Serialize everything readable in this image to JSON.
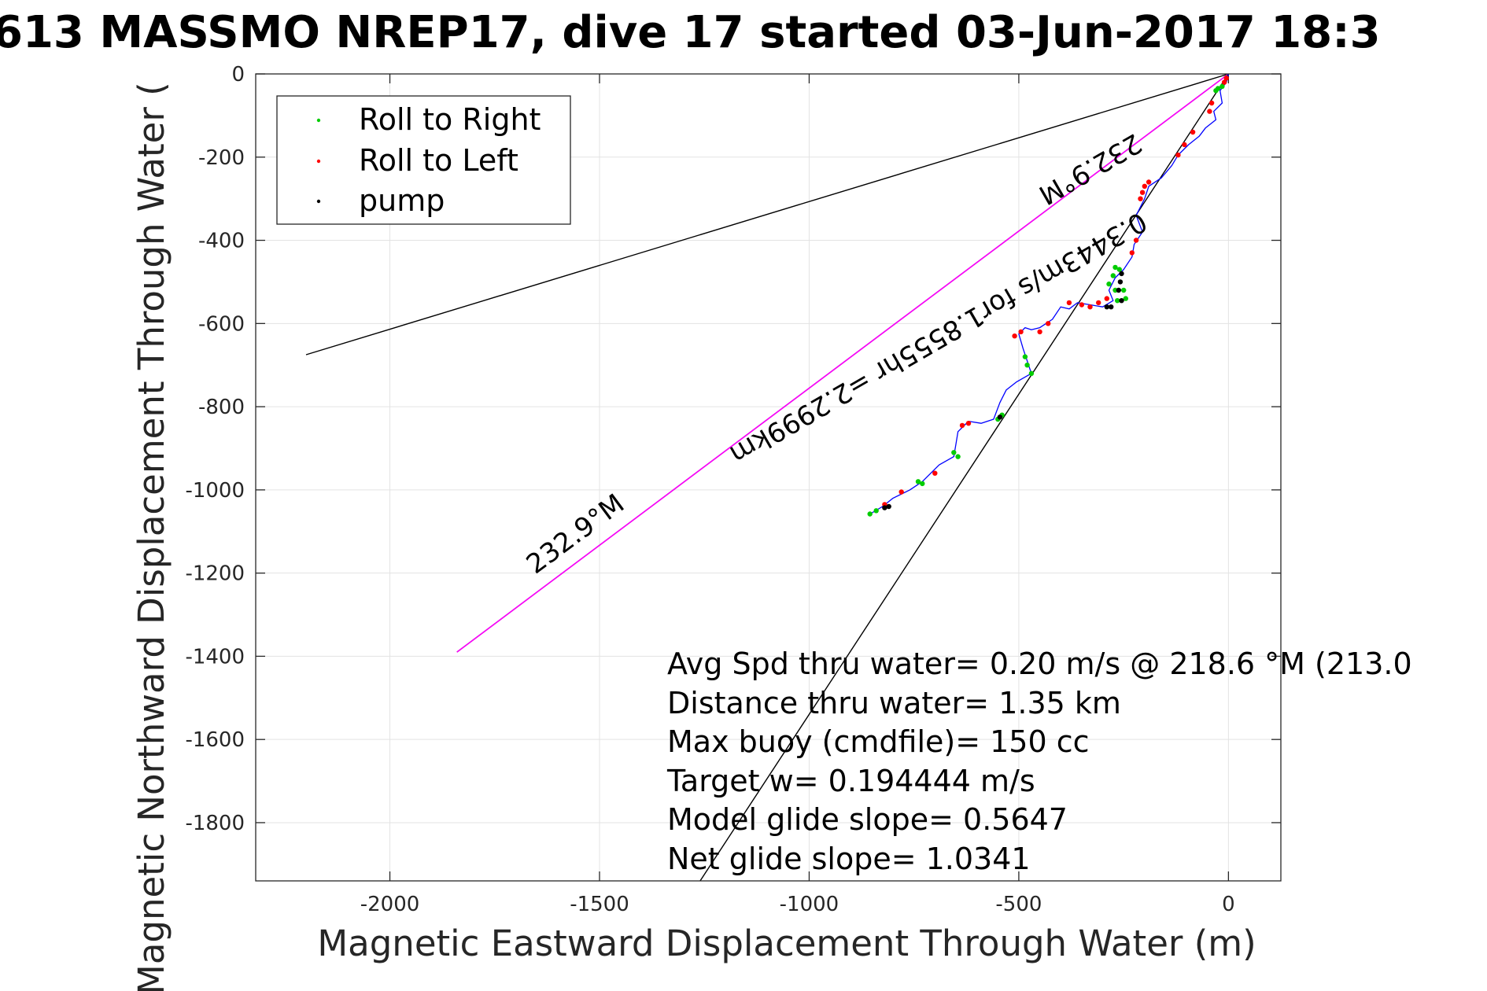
{
  "chart_data": {
    "type": "scatter",
    "title": "613 MASSMO NREP17, dive 17 started 03-Jun-2017 18:3",
    "xlabel": "Magnetic Eastward Displacement Through Water (m)",
    "ylabel": "Magnetic Northward Displacement Through Water (",
    "xlim": [
      -2320,
      125
    ],
    "ylim": [
      -1940,
      0
    ],
    "grid": true,
    "legend_position": "top-left",
    "xticks": [
      {
        "value": -2000,
        "label": "-2000"
      },
      {
        "value": -1500,
        "label": "-1500"
      },
      {
        "value": -1000,
        "label": "-1000"
      },
      {
        "value": -500,
        "label": "-500"
      },
      {
        "value": 0,
        "label": "0"
      }
    ],
    "yticks": [
      {
        "value": 0,
        "label": "0"
      },
      {
        "value": -200,
        "label": "-200"
      },
      {
        "value": -400,
        "label": "-400"
      },
      {
        "value": -600,
        "label": "-600"
      },
      {
        "value": -800,
        "label": "-800"
      },
      {
        "value": -1000,
        "label": "-1000"
      },
      {
        "value": -1200,
        "label": "-1200"
      },
      {
        "value": -1400,
        "label": "-1400"
      },
      {
        "value": -1600,
        "label": "-1600"
      },
      {
        "value": -1800,
        "label": "-1800"
      }
    ],
    "legend": [
      {
        "name": "Roll to Right",
        "color": "#00cc00"
      },
      {
        "name": "Roll to Left",
        "color": "#ff0000"
      },
      {
        "name": "pump",
        "color": "#000000"
      }
    ],
    "track": {
      "color": "#0000ff",
      "points": [
        [
          0,
          0
        ],
        [
          -5,
          -20
        ],
        [
          -20,
          -40
        ],
        [
          -15,
          -70
        ],
        [
          -35,
          -90
        ],
        [
          -30,
          -110
        ],
        [
          -55,
          -130
        ],
        [
          -70,
          -150
        ],
        [
          -95,
          -170
        ],
        [
          -120,
          -195
        ],
        [
          -135,
          -220
        ],
        [
          -160,
          -250
        ],
        [
          -190,
          -270
        ],
        [
          -200,
          -300
        ],
        [
          -220,
          -340
        ],
        [
          -205,
          -380
        ],
        [
          -225,
          -410
        ],
        [
          -230,
          -440
        ],
        [
          -250,
          -470
        ],
        [
          -270,
          -490
        ],
        [
          -285,
          -520
        ],
        [
          -275,
          -545
        ],
        [
          -300,
          -560
        ],
        [
          -330,
          -555
        ],
        [
          -360,
          -550
        ],
        [
          -380,
          -565
        ],
        [
          -400,
          -560
        ],
        [
          -420,
          -590
        ],
        [
          -450,
          -610
        ],
        [
          -470,
          -615
        ],
        [
          -485,
          -610
        ],
        [
          -500,
          -625
        ],
        [
          -490,
          -660
        ],
        [
          -480,
          -690
        ],
        [
          -470,
          -720
        ],
        [
          -505,
          -740
        ],
        [
          -530,
          -760
        ],
        [
          -545,
          -790
        ],
        [
          -560,
          -830
        ],
        [
          -590,
          -840
        ],
        [
          -620,
          -835
        ],
        [
          -645,
          -860
        ],
        [
          -650,
          -890
        ],
        [
          -655,
          -920
        ],
        [
          -690,
          -940
        ],
        [
          -710,
          -960
        ],
        [
          -730,
          -980
        ],
        [
          -760,
          -1000
        ],
        [
          -800,
          -1020
        ],
        [
          -825,
          -1040
        ],
        [
          -850,
          -1055
        ],
        [
          -860,
          -1060
        ]
      ]
    },
    "roll_right": {
      "color": "#00cc00",
      "points": [
        [
          -15,
          -30
        ],
        [
          -25,
          -35
        ],
        [
          -30,
          -40
        ],
        [
          -260,
          -470
        ],
        [
          -270,
          -465
        ],
        [
          -275,
          -485
        ],
        [
          -285,
          -505
        ],
        [
          -270,
          -520
        ],
        [
          -250,
          -520
        ],
        [
          -245,
          -540
        ],
        [
          -265,
          -545
        ],
        [
          -485,
          -680
        ],
        [
          -480,
          -700
        ],
        [
          -470,
          -720
        ],
        [
          -540,
          -820
        ],
        [
          -550,
          -830
        ],
        [
          -645,
          -920
        ],
        [
          -655,
          -910
        ],
        [
          -730,
          -985
        ],
        [
          -740,
          -980
        ],
        [
          -840,
          -1050
        ],
        [
          -855,
          -1058
        ]
      ]
    },
    "roll_left": {
      "color": "#ff0000",
      "points": [
        [
          -5,
          -10
        ],
        [
          -10,
          -20
        ],
        [
          -40,
          -70
        ],
        [
          -45,
          -90
        ],
        [
          -85,
          -140
        ],
        [
          -105,
          -170
        ],
        [
          -120,
          -195
        ],
        [
          -190,
          -260
        ],
        [
          -200,
          -270
        ],
        [
          -205,
          -285
        ],
        [
          -210,
          -300
        ],
        [
          -220,
          -400
        ],
        [
          -230,
          -430
        ],
        [
          -290,
          -540
        ],
        [
          -310,
          -550
        ],
        [
          -330,
          -560
        ],
        [
          -350,
          -555
        ],
        [
          -380,
          -550
        ],
        [
          -430,
          -600
        ],
        [
          -450,
          -620
        ],
        [
          -495,
          -620
        ],
        [
          -510,
          -630
        ],
        [
          -620,
          -840
        ],
        [
          -635,
          -845
        ],
        [
          -700,
          -960
        ],
        [
          -780,
          -1005
        ],
        [
          -820,
          -1035
        ]
      ]
    },
    "pump": {
      "color": "#000000",
      "points": [
        [
          -255,
          -480
        ],
        [
          -258,
          -500
        ],
        [
          -262,
          -520
        ],
        [
          -255,
          -545
        ],
        [
          -280,
          -560
        ],
        [
          -290,
          -560
        ],
        [
          -810,
          -1040
        ],
        [
          -820,
          -1043
        ],
        [
          -545,
          -825
        ]
      ]
    },
    "lines": [
      {
        "color": "#000000",
        "points": [
          [
            0,
            0
          ],
          [
            -2200,
            -675
          ]
        ]
      },
      {
        "color": "#000000",
        "points": [
          [
            0,
            0
          ],
          [
            -1840,
            -1390
          ]
        ]
      },
      {
        "color": "#ff00ff",
        "points": [
          [
            0,
            0
          ],
          [
            -1840,
            -1390
          ]
        ]
      },
      {
        "color": "#000000",
        "points": [
          [
            0,
            0
          ],
          [
            -1260,
            -1940
          ]
        ]
      }
    ],
    "annotations": [
      {
        "text": "232.9°M"
      },
      {
        "text": "0.3443m/s for1.8555hr =2.2999km"
      },
      {
        "text": "232.9°M"
      }
    ],
    "stats": [
      "Avg Spd thru water=  0.20 m/s @ 218.6 °M (213.0",
      "Distance thru water=  1.35 km",
      "Max buoy (cmdfile)= 150 cc",
      "Target w= 0.194444 m/s",
      "Model glide slope= 0.5647",
      "Net glide slope= 1.0341"
    ]
  }
}
